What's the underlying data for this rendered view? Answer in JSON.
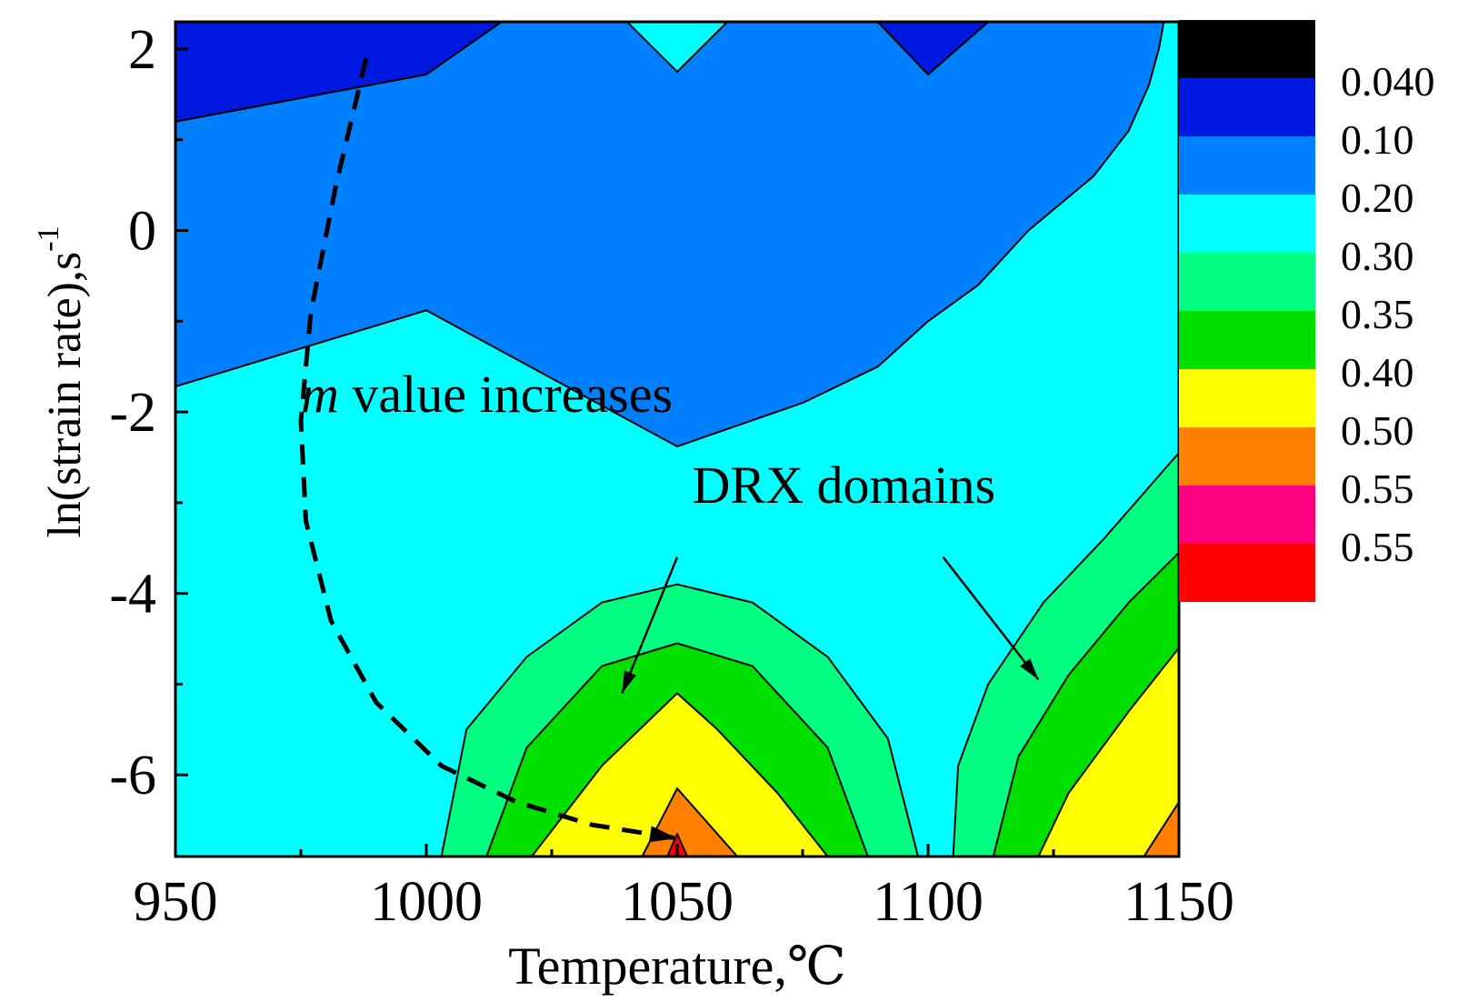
{
  "chart_data": {
    "type": "heatmap",
    "subtype": "filled-contour",
    "xlabel": "Temperature,℃",
    "ylabel": "ln(strain rate),s",
    "ylabel_superscript": "-1",
    "xlim": [
      950,
      1150
    ],
    "ylim": [
      -6.9,
      2.3
    ],
    "x_ticks": [
      950,
      1000,
      1050,
      1100,
      1150
    ],
    "y_ticks": [
      -6,
      -4,
      -2,
      0,
      2
    ],
    "x_ticks_labels": [
      "950",
      "1000",
      "1050",
      "1100",
      "1150"
    ],
    "y_ticks_labels": [
      "-6",
      "-4",
      "-2",
      "0",
      "2"
    ],
    "colorbar": {
      "colors": [
        "#000000",
        "#0019e0",
        "#0080ff",
        "#00ffff",
        "#00ff80",
        "#00e000",
        "#ffff00",
        "#ff8000",
        "#ff0080",
        "#ff0000"
      ],
      "labels": [
        "0.040",
        "0.10",
        "0.20",
        "0.30",
        "0.35",
        "0.40",
        "0.50",
        "0.55",
        "0.55"
      ]
    },
    "regions": [
      {
        "level": "0.10",
        "color": "#0019e0",
        "points": [
          [
            950,
            2.3
          ],
          [
            950,
            1.2
          ],
          [
            1000,
            1.72
          ],
          [
            1015,
            2.3
          ]
        ]
      },
      {
        "level": "0.20",
        "color": "#0080ff",
        "points": [
          [
            950,
            1.2
          ],
          [
            950,
            -1.72
          ],
          [
            1000,
            -0.88
          ],
          [
            1050,
            -2.38
          ],
          [
            1075,
            -1.9
          ],
          [
            1090,
            -1.5
          ],
          [
            1100,
            -1.0
          ],
          [
            1110,
            -0.6
          ],
          [
            1120,
            0.0
          ],
          [
            1133,
            0.6
          ],
          [
            1140,
            1.1
          ],
          [
            1144,
            1.6
          ],
          [
            1146,
            2.0
          ],
          [
            1147,
            2.3
          ],
          [
            1112,
            2.3
          ],
          [
            1100,
            1.72
          ],
          [
            1090,
            2.3
          ],
          [
            1060,
            2.3
          ],
          [
            1050,
            1.75
          ],
          [
            1040,
            2.3
          ],
          [
            1015,
            2.3
          ],
          [
            1000,
            1.72
          ]
        ]
      },
      {
        "level": "0.20",
        "color": "#0019e0",
        "points": [
          [
            1090,
            2.3
          ],
          [
            1100,
            1.72
          ],
          [
            1112,
            2.3
          ]
        ]
      },
      {
        "level": "0.30",
        "color": "#00ff80",
        "points": [
          [
            1003,
            -6.9
          ],
          [
            1008,
            -5.5
          ],
          [
            1020,
            -4.7
          ],
          [
            1035,
            -4.1
          ],
          [
            1050,
            -3.9
          ],
          [
            1065,
            -4.1
          ],
          [
            1080,
            -4.7
          ],
          [
            1092,
            -5.6
          ],
          [
            1098,
            -6.9
          ]
        ]
      },
      {
        "level": "0.35",
        "color": "#00e000",
        "points": [
          [
            1012,
            -6.9
          ],
          [
            1020,
            -5.7
          ],
          [
            1035,
            -4.8
          ],
          [
            1050,
            -4.55
          ],
          [
            1065,
            -4.8
          ],
          [
            1080,
            -5.7
          ],
          [
            1088,
            -6.9
          ]
        ]
      },
      {
        "level": "0.40",
        "color": "#ffff00",
        "points": [
          [
            1021,
            -6.9
          ],
          [
            1035,
            -5.9
          ],
          [
            1050,
            -5.1
          ],
          [
            1058,
            -5.5
          ],
          [
            1070,
            -6.2
          ],
          [
            1080,
            -6.9
          ]
        ]
      },
      {
        "level": "0.50",
        "color": "#ff8000",
        "points": [
          [
            1043,
            -6.9
          ],
          [
            1050,
            -6.15
          ],
          [
            1062,
            -6.9
          ]
        ]
      },
      {
        "level": "0.55",
        "color": "#ff0000",
        "points": [
          [
            1048,
            -6.9
          ],
          [
            1050,
            -6.65
          ],
          [
            1052,
            -6.9
          ]
        ]
      },
      {
        "level": "0.30",
        "color": "#00ff80",
        "points": [
          [
            1105,
            -6.9
          ],
          [
            1106,
            -5.9
          ],
          [
            1112,
            -5.0
          ],
          [
            1123,
            -4.1
          ],
          [
            1135,
            -3.4
          ],
          [
            1150,
            -2.45
          ],
          [
            1150,
            -6.9
          ]
        ]
      },
      {
        "level": "0.35",
        "color": "#00e000",
        "points": [
          [
            1113,
            -6.9
          ],
          [
            1118,
            -5.8
          ],
          [
            1128,
            -4.9
          ],
          [
            1140,
            -4.1
          ],
          [
            1150,
            -3.55
          ],
          [
            1150,
            -6.9
          ]
        ]
      },
      {
        "level": "0.40",
        "color": "#ffff00",
        "points": [
          [
            1122,
            -6.9
          ],
          [
            1128,
            -6.2
          ],
          [
            1140,
            -5.3
          ],
          [
            1150,
            -4.6
          ],
          [
            1150,
            -6.9
          ]
        ]
      },
      {
        "level": "0.50",
        "color": "#ff8000",
        "points": [
          [
            1143,
            -6.9
          ],
          [
            1150,
            -6.3
          ],
          [
            1150,
            -6.9
          ]
        ]
      }
    ],
    "annotations": [
      {
        "text_italic": "m",
        "text": " value increases",
        "x": 975,
        "y": -2.0
      },
      {
        "text": "DRX domains",
        "x": 1053,
        "y": -3.0
      }
    ],
    "dashed_curve": [
      [
        988,
        1.9
      ],
      [
        982,
        0.5
      ],
      [
        977,
        -0.9
      ],
      [
        975,
        -2.1
      ],
      [
        976,
        -3.2
      ],
      [
        981,
        -4.3
      ],
      [
        990,
        -5.2
      ],
      [
        1003,
        -5.9
      ],
      [
        1018,
        -6.3
      ],
      [
        1033,
        -6.55
      ],
      [
        1050,
        -6.7
      ]
    ],
    "arrows": [
      {
        "from": [
          1050,
          -3.6
        ],
        "to": [
          1039,
          -5.1
        ]
      },
      {
        "from": [
          1103,
          -3.6
        ],
        "to": [
          1122,
          -4.95
        ]
      }
    ]
  }
}
